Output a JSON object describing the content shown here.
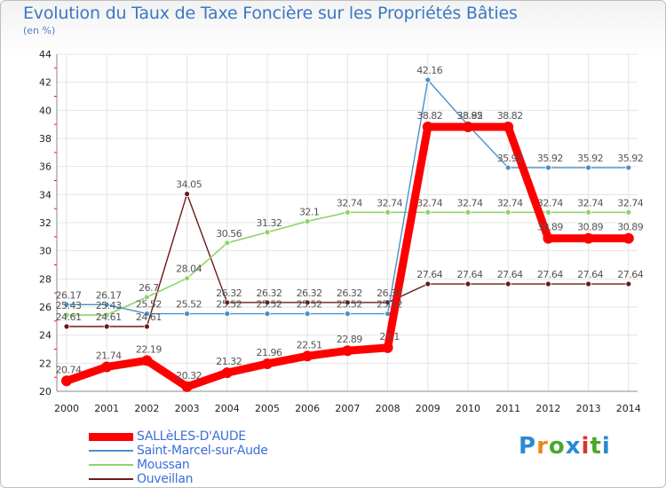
{
  "colors": {
    "series": [
      "#ff0000",
      "#4a90c8",
      "#8ed36a",
      "#6b1a1a"
    ],
    "title": "#3a78c4",
    "legend_text": "#3a6fd8",
    "logo": [
      "#2a8ad4",
      "#e88a1a",
      "#4aa82a",
      "#2a8ad4",
      "#d4382a",
      "#4aa82a"
    ]
  },
  "logo": {
    "letters": [
      "P",
      "r",
      "o",
      "x",
      "i",
      "t",
      "i"
    ]
  },
  "chart_data": {
    "type": "line",
    "title": "Evolution du Taux de Taxe Foncière sur les Propriétés Bâties",
    "subtitle": "(en %)",
    "xlabel": "",
    "ylabel": "",
    "categories": [
      "2000",
      "2001",
      "2002",
      "2003",
      "2004",
      "2005",
      "2006",
      "2007",
      "2008",
      "2009",
      "2010",
      "2011",
      "2012",
      "2013",
      "2014"
    ],
    "ylim": [
      20,
      44
    ],
    "yticks": [
      "20",
      "22",
      "24",
      "26",
      "28",
      "30",
      "32",
      "34",
      "36",
      "38",
      "40",
      "42",
      "44"
    ],
    "grid": true,
    "legend_position": "bottom-left",
    "series": [
      {
        "name": "SALLèLES-D'AUDE",
        "values": [
          20.74,
          21.74,
          22.19,
          20.32,
          21.32,
          21.96,
          22.51,
          22.89,
          23.1,
          38.82,
          38.82,
          38.82,
          30.89,
          30.89,
          30.89
        ],
        "labels": [
          "20.74",
          "21.74",
          "22.19",
          "20.32",
          "21.32",
          "21.96",
          "22.51",
          "22.89",
          "23.1",
          "38.82",
          "38.82",
          "38.82",
          "30.89",
          "30.89",
          "30.89"
        ]
      },
      {
        "name": "Saint-Marcel-sur-Aude",
        "values": [
          26.17,
          26.17,
          25.52,
          25.52,
          25.52,
          25.52,
          25.52,
          25.52,
          25.52,
          42.16,
          38.95,
          35.92,
          35.92,
          35.92,
          35.92
        ],
        "labels": [
          "26.17",
          "26.17",
          "25.52",
          "25.52",
          "25.52",
          "25.52",
          "25.52",
          "25.52",
          "25.52",
          "42.16",
          "38.95",
          "35.92",
          "35.92",
          "35.92",
          "35.92"
        ]
      },
      {
        "name": "Moussan",
        "values": [
          25.43,
          25.43,
          26.7,
          28.04,
          30.56,
          31.32,
          32.1,
          32.74,
          32.74,
          32.74,
          32.74,
          32.74,
          32.74,
          32.74,
          32.74
        ],
        "labels": [
          "25.43",
          "25.43",
          "26.7",
          "28.04",
          "30.56",
          "31.32",
          "32.1",
          "32.74",
          "32.74",
          "32.74",
          "32.74",
          "32.74",
          "32.74",
          "32.74",
          "32.74"
        ]
      },
      {
        "name": "Ouveillan",
        "values": [
          24.61,
          24.61,
          24.61,
          34.05,
          26.32,
          26.32,
          26.32,
          26.32,
          26.32,
          27.64,
          27.64,
          27.64,
          27.64,
          27.64,
          27.64
        ],
        "labels": [
          "24.61",
          "24.61",
          "24.61",
          "34.05",
          "26.32",
          "26.32",
          "26.32",
          "26.32",
          "26.32",
          "27.64",
          "27.64",
          "27.64",
          "27.64",
          "27.64",
          "27.64"
        ]
      }
    ]
  }
}
